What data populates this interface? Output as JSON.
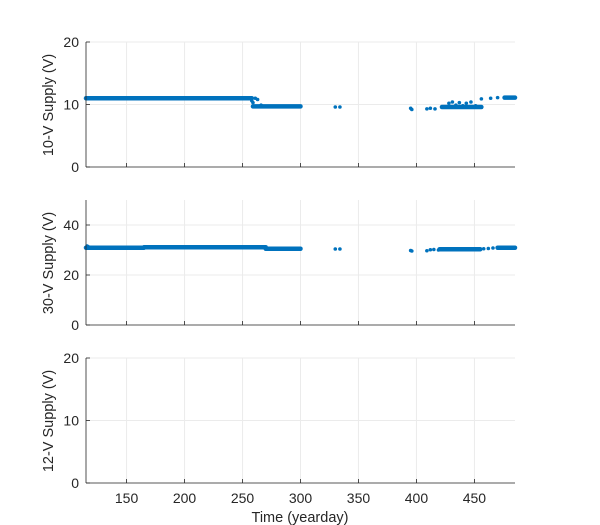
{
  "chart_data": [
    {
      "type": "scatter",
      "ylabel": "10-V Supply (V)",
      "xlim": [
        115,
        485
      ],
      "ylim": [
        0,
        20
      ],
      "xticks": [
        150,
        200,
        250,
        300,
        350,
        400,
        450
      ],
      "yticks": [
        0,
        10,
        20
      ],
      "grid": true,
      "series": [
        {
          "color": "#0072BD",
          "segments": [
            {
              "x0": 115,
              "x1": 258,
              "y": 11.0
            },
            {
              "x0": 259,
              "x1": 300,
              "y": 9.7
            },
            {
              "x0": 422,
              "x1": 456,
              "y": 9.6
            },
            {
              "x0": 476,
              "x1": 485,
              "y": 11.1
            }
          ],
          "points": [
            [
              258,
              10.6
            ],
            [
              259,
              10.3
            ],
            [
              261,
              11.0
            ],
            [
              263,
              10.8
            ],
            [
              266,
              9.9
            ],
            [
              330,
              9.6
            ],
            [
              334,
              9.6
            ],
            [
              395,
              9.4
            ],
            [
              396,
              9.2
            ],
            [
              409,
              9.3
            ],
            [
              412,
              9.4
            ],
            [
              416,
              9.3
            ],
            [
              428,
              10.2
            ],
            [
              431,
              10.4
            ],
            [
              434,
              9.9
            ],
            [
              437,
              10.3
            ],
            [
              440,
              9.8
            ],
            [
              443,
              10.2
            ],
            [
              447,
              10.4
            ],
            [
              451,
              9.8
            ],
            [
              456,
              10.9
            ],
            [
              464,
              11.0
            ],
            [
              470,
              11.1
            ]
          ]
        }
      ]
    },
    {
      "type": "scatter",
      "ylabel": "30-V Supply (V)",
      "xlim": [
        115,
        485
      ],
      "ylim": [
        0,
        50
      ],
      "xticks": [
        150,
        200,
        250,
        300,
        350,
        400,
        450
      ],
      "yticks": [
        0,
        20,
        40
      ],
      "grid": true,
      "series": [
        {
          "color": "#0072BD",
          "segments": [
            {
              "x0": 115,
              "x1": 165,
              "y": 30.9
            },
            {
              "x0": 165,
              "x1": 270,
              "y": 31.1
            },
            {
              "x0": 270,
              "x1": 300,
              "y": 30.5
            },
            {
              "x0": 420,
              "x1": 455,
              "y": 30.3
            },
            {
              "x0": 470,
              "x1": 485,
              "y": 30.9
            }
          ],
          "points": [
            [
              116,
              31.6
            ],
            [
              117,
              31.3
            ],
            [
              330,
              30.4
            ],
            [
              334,
              30.4
            ],
            [
              395,
              29.8
            ],
            [
              396,
              29.6
            ],
            [
              409,
              29.7
            ],
            [
              412,
              30.1
            ],
            [
              415,
              30.2
            ],
            [
              419,
              30.0
            ],
            [
              458,
              30.5
            ],
            [
              462,
              30.6
            ],
            [
              466,
              30.8
            ]
          ]
        }
      ]
    },
    {
      "type": "scatter",
      "ylabel": "12-V Supply (V)",
      "xlabel": "Time (yearday)",
      "xlim": [
        115,
        485
      ],
      "ylim": [
        0,
        20
      ],
      "xticks": [
        150,
        200,
        250,
        300,
        350,
        400,
        450
      ],
      "yticks": [
        0,
        10,
        20
      ],
      "grid": true,
      "series": []
    }
  ]
}
